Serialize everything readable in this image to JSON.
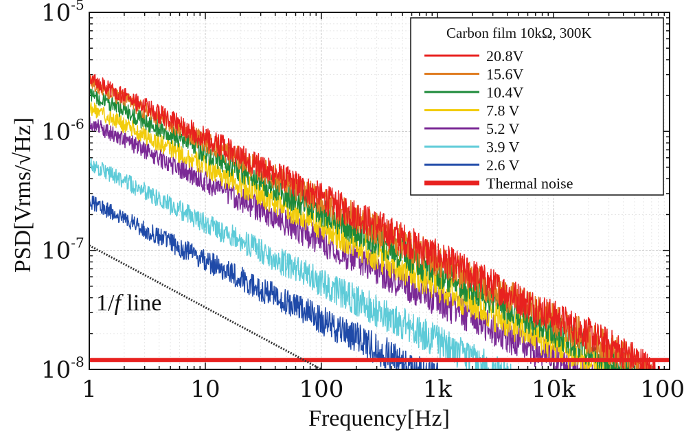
{
  "chart_data": {
    "type": "line",
    "title": "",
    "xlabel": "Frequency[Hz]",
    "ylabel": "PSD[Vrms/√Hz]",
    "xscale": "log",
    "yscale": "log",
    "xlim": [
      1,
      100000
    ],
    "ylim": [
      1e-08,
      1e-05
    ],
    "grid": true,
    "legend_position": "top-right",
    "legend_title": "Carbon film 10kΩ, 300K",
    "x_tick_labels": [
      "1",
      "10",
      "100",
      "1k",
      "10k",
      "100k"
    ],
    "x_tick_values": [
      1,
      10,
      100,
      1000,
      10000,
      100000
    ],
    "y_tick_values": [
      1e-08,
      1e-07,
      1e-06,
      1e-05
    ],
    "y_tick_mantissa": "10",
    "y_tick_exponents": [
      "-8",
      "-7",
      "-6",
      "-5"
    ],
    "series": [
      {
        "name": "20.8V",
        "color": "#e8211f",
        "y_at_1Hz": 2.8e-06,
        "rolloff_hz": 90000
      },
      {
        "name": "15.6V",
        "color": "#e07d22",
        "y_at_1Hz": 2.6e-06,
        "rolloff_hz": 80000
      },
      {
        "name": "10.4V",
        "color": "#1d8a3a",
        "y_at_1Hz": 2.1e-06,
        "rolloff_hz": 70000
      },
      {
        "name": "7.8  V",
        "color": "#f2cc0c",
        "y_at_1Hz": 1.6e-06,
        "rolloff_hz": 60000
      },
      {
        "name": "5.2  V",
        "color": "#7b2a96",
        "y_at_1Hz": 1.2e-06,
        "rolloff_hz": 50000
      },
      {
        "name": "3.9  V",
        "color": "#5ecbd8",
        "y_at_1Hz": 5.4e-07,
        "rolloff_hz": 40000
      },
      {
        "name": "2.6  V",
        "color": "#1f4aa8",
        "y_at_1Hz": 2.6e-07,
        "rolloff_hz": 30000
      }
    ],
    "thermal_noise": {
      "name": "Thermal noise",
      "color": "#e8211f",
      "value": 1.2e-08
    },
    "one_over_f_line": {
      "label_prefix": "1/",
      "label_var": "f",
      "label_suffix": "  line",
      "x": [
        1,
        100
      ],
      "y": [
        1.1e-07,
        1e-08
      ],
      "color": "#333333"
    }
  }
}
